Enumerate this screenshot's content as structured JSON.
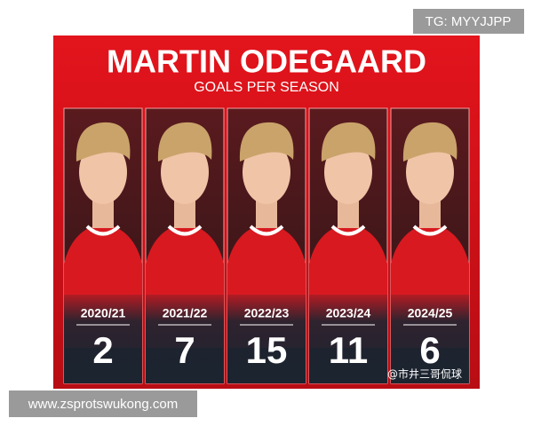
{
  "header": {
    "title": "MARTIN ODEGAARD",
    "subtitle": "GOALS PER SEASON"
  },
  "seasons": [
    {
      "label": "2020/21",
      "goals": "2"
    },
    {
      "label": "2021/22",
      "goals": "7"
    },
    {
      "label": "2022/23",
      "goals": "15"
    },
    {
      "label": "2023/24",
      "goals": "11"
    },
    {
      "label": "2024/25",
      "goals": "6"
    }
  ],
  "watermarks": {
    "top": "TG: MYYJJPP",
    "bottom": "www.zsprotswukong.com",
    "credit": "@市井三哥侃球"
  }
}
